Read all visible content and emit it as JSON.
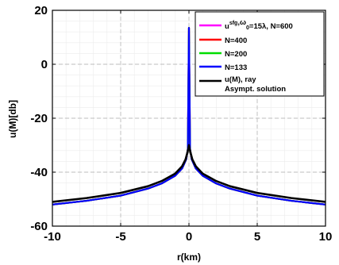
{
  "chart_data": {
    "type": "line",
    "title": "",
    "xlabel": "r(km)",
    "ylabel": "u(M)[db]",
    "xlim": [
      -10,
      10
    ],
    "ylim": [
      -60,
      20
    ],
    "xticks": [
      -10,
      -5,
      0,
      5,
      10
    ],
    "yticks": [
      -60,
      -40,
      -20,
      0,
      20
    ],
    "xtick_labels": [
      "-10",
      "-5",
      "0",
      "5",
      "10"
    ],
    "ytick_labels": [
      "-60",
      "-40",
      "-20",
      "0",
      "20"
    ],
    "grid": true,
    "legend_position": "top-right",
    "legend_box": {
      "first_entry": {
        "base": "u",
        "sup": "sfg",
        "mid": ",ω",
        "sub": "0",
        "tail": "=15λ, N=600"
      },
      "entries": [
        "N=400",
        "N=200",
        "N=133"
      ],
      "last_entry_lines": [
        "u(M), ray",
        "Asympt. solution"
      ]
    },
    "series": [
      {
        "color": "#ff00ff",
        "x": [
          -10,
          -7.5,
          -5,
          -3,
          -2,
          -1,
          -0.5,
          -0.2,
          -0.08,
          0,
          0.08,
          0.2,
          0.5,
          1,
          2,
          3,
          5,
          7.5,
          10
        ],
        "y": [
          -52,
          -50.6,
          -48.7,
          -46.1,
          -44.2,
          -41.3,
          -38.6,
          -35.2,
          -31.5,
          13.5,
          -31.5,
          -35.2,
          -38.6,
          -41.3,
          -44.2,
          -46.1,
          -48.7,
          -50.6,
          -52
        ]
      },
      {
        "color": "#ff0000",
        "x": [
          -10,
          -7.5,
          -5,
          -3,
          -2,
          -1,
          -0.5,
          -0.2,
          -0.08,
          0,
          0.08,
          0.2,
          0.5,
          1,
          2,
          3,
          5,
          7.5,
          10
        ],
        "y": [
          -52,
          -50.6,
          -48.7,
          -46.1,
          -44.2,
          -41.3,
          -38.6,
          -35.2,
          -31.5,
          13.5,
          -31.5,
          -35.2,
          -38.6,
          -41.3,
          -44.2,
          -46.1,
          -48.7,
          -50.6,
          -52
        ]
      },
      {
        "color": "#00dd00",
        "x": [
          -10,
          -7.5,
          -5,
          -3,
          -2,
          -1,
          -0.5,
          -0.2,
          -0.08,
          0,
          0.08,
          0.2,
          0.5,
          1,
          2,
          3,
          5,
          7.5,
          10
        ],
        "y": [
          -52,
          -50.6,
          -48.7,
          -46.1,
          -44.2,
          -41.3,
          -38.6,
          -35.2,
          -31.5,
          13.5,
          -31.5,
          -35.2,
          -38.6,
          -41.3,
          -44.2,
          -46.1,
          -48.7,
          -50.6,
          -52
        ]
      },
      {
        "color": "#0000ff",
        "x": [
          -10,
          -7.5,
          -5,
          -3,
          -2,
          -1,
          -0.5,
          -0.2,
          -0.08,
          0,
          0.08,
          0.2,
          0.5,
          1,
          2,
          3,
          5,
          7.5,
          10
        ],
        "y": [
          -52,
          -50.6,
          -48.7,
          -46.1,
          -44.2,
          -41.3,
          -38.6,
          -35.2,
          -31.5,
          13.5,
          -31.5,
          -35.2,
          -38.6,
          -41.3,
          -44.2,
          -46.1,
          -48.7,
          -50.6,
          -52
        ]
      },
      {
        "color": "#000000",
        "x": [
          -10,
          -7.5,
          -5,
          -3,
          -2,
          -1,
          -0.5,
          -0.25,
          -0.1,
          0,
          0.1,
          0.25,
          0.5,
          1,
          2,
          3,
          5,
          7.5,
          10
        ],
        "y": [
          -51,
          -49.6,
          -47.7,
          -45.2,
          -43.3,
          -40.5,
          -37.8,
          -35.3,
          -32.5,
          -30,
          -32.5,
          -35.3,
          -37.8,
          -40.5,
          -43.3,
          -45.2,
          -47.7,
          -49.6,
          -51
        ]
      }
    ]
  }
}
